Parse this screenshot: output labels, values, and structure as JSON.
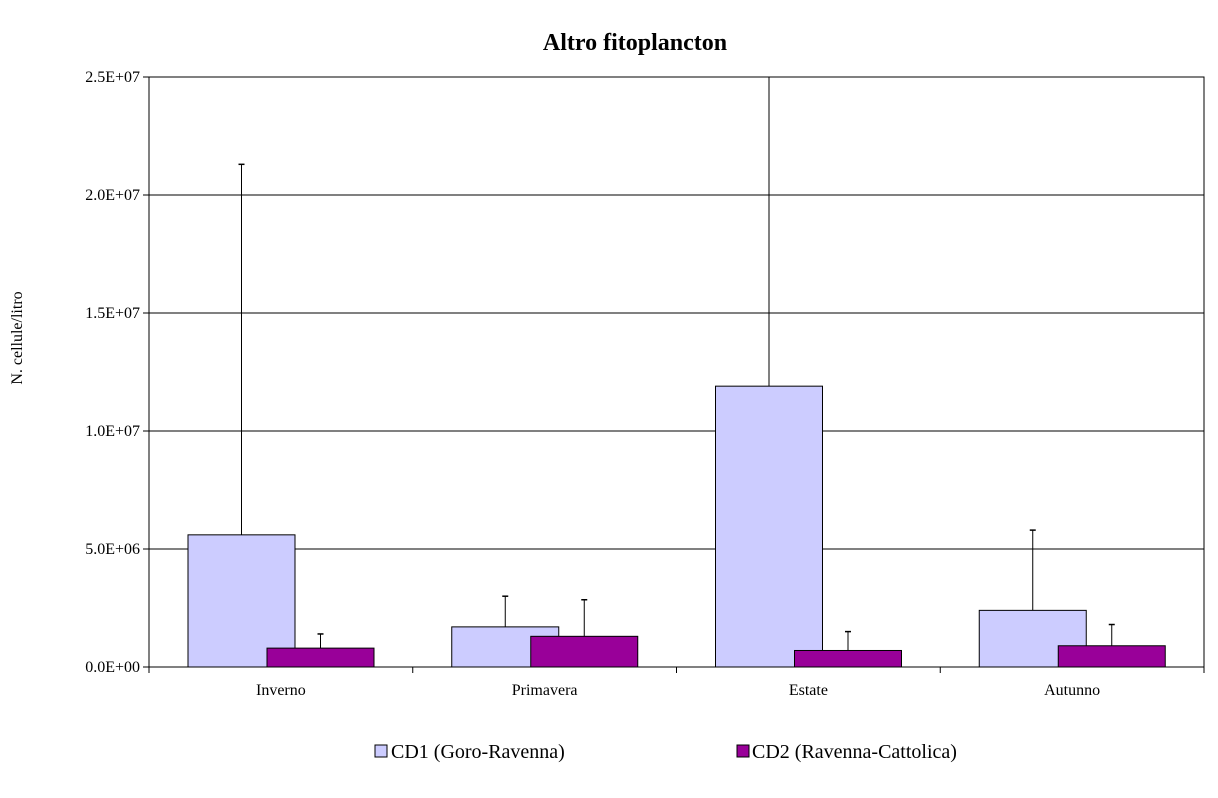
{
  "chart_data": {
    "type": "bar",
    "title": "Altro fitoplancton",
    "xlabel": "",
    "ylabel": "N. cellule/litro",
    "categories": [
      "Inverno",
      "Primavera",
      "Estate",
      "Autunno"
    ],
    "ylim": [
      0,
      25000000
    ],
    "yticks": [
      0,
      5000000,
      10000000,
      15000000,
      20000000,
      25000000
    ],
    "ytick_labels": [
      "0.0E+00",
      "5.0E+06",
      "1.0E+07",
      "1.5E+07",
      "2.0E+07",
      "2.5E+07"
    ],
    "grid": true,
    "legend_position": "bottom",
    "series": [
      {
        "name": "CD1 (Goro-Ravenna)",
        "color": "#ccccff",
        "values": [
          5600000,
          1700000,
          11900000,
          2400000
        ],
        "error_upper": [
          21300000,
          3000000,
          25000000,
          5800000
        ]
      },
      {
        "name": "CD2 (Ravenna-Cattolica)",
        "color": "#990099",
        "values": [
          800000,
          1300000,
          700000,
          900000
        ],
        "error_upper": [
          1400000,
          2850000,
          1500000,
          1800000
        ]
      }
    ]
  }
}
